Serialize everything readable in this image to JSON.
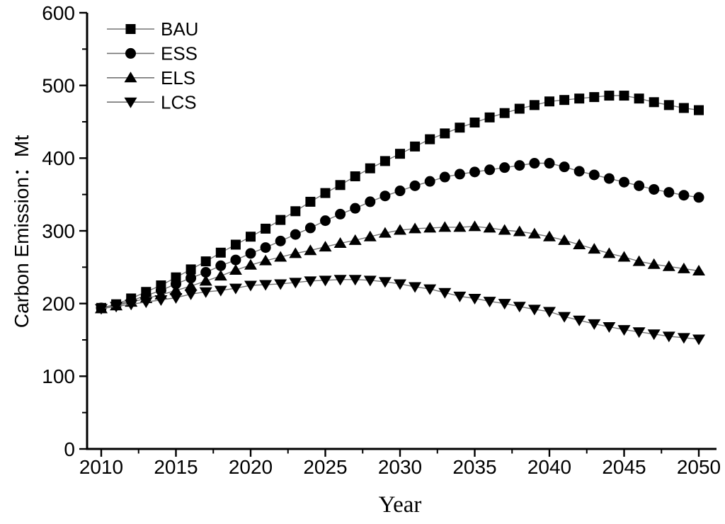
{
  "chart_data": {
    "type": "line",
    "title": "",
    "xlabel": "Year",
    "ylabel": "Carbon Emission：Mt",
    "xlim": [
      2010,
      2050
    ],
    "ylim": [
      0,
      600
    ],
    "x_ticks": [
      2010,
      2015,
      2020,
      2025,
      2030,
      2035,
      2040,
      2045,
      2050
    ],
    "y_ticks": [
      0,
      100,
      200,
      300,
      400,
      500,
      600
    ],
    "grid": "off",
    "legend_position": "top-left",
    "series_color": "#000000",
    "connector_color": "#737373",
    "x": [
      2010,
      2011,
      2012,
      2013,
      2014,
      2015,
      2016,
      2017,
      2018,
      2019,
      2020,
      2021,
      2022,
      2023,
      2024,
      2025,
      2026,
      2027,
      2028,
      2029,
      2030,
      2031,
      2032,
      2033,
      2034,
      2035,
      2036,
      2037,
      2038,
      2039,
      2040,
      2041,
      2042,
      2043,
      2044,
      2045,
      2046,
      2047,
      2048,
      2049,
      2050
    ],
    "series": [
      {
        "name": "BAU",
        "marker": "square",
        "values": [
          194,
          199,
          207,
          216,
          225,
          236,
          247,
          258,
          270,
          281,
          292,
          303,
          315,
          327,
          340,
          352,
          363,
          375,
          386,
          396,
          406,
          416,
          426,
          434,
          442,
          449,
          456,
          462,
          468,
          473,
          478,
          480,
          482,
          484,
          486,
          486,
          482,
          477,
          473,
          469,
          466
        ]
      },
      {
        "name": "ESS",
        "marker": "circle",
        "values": [
          194,
          198,
          204,
          211,
          218,
          227,
          235,
          243,
          252,
          260,
          269,
          277,
          286,
          295,
          304,
          314,
          323,
          331,
          340,
          348,
          355,
          362,
          368,
          374,
          378,
          381,
          384,
          387,
          390,
          393,
          393,
          388,
          382,
          377,
          372,
          367,
          362,
          357,
          353,
          349,
          346
        ]
      },
      {
        "name": "ELS",
        "marker": "triangle-up",
        "values": [
          193,
          197,
          202,
          207,
          212,
          218,
          224,
          231,
          238,
          246,
          253,
          259,
          264,
          269,
          273,
          278,
          283,
          287,
          292,
          297,
          301,
          303,
          304,
          305,
          305,
          306,
          304,
          301,
          299,
          296,
          292,
          287,
          281,
          275,
          269,
          264,
          258,
          254,
          251,
          248,
          245
        ]
      },
      {
        "name": "LCS",
        "marker": "triangle-down",
        "values": [
          193,
          196,
          199,
          202,
          205,
          208,
          213,
          216,
          218,
          221,
          225,
          226,
          227,
          229,
          231,
          232,
          233,
          233,
          232,
          230,
          227,
          223,
          220,
          215,
          210,
          207,
          203,
          200,
          196,
          192,
          189,
          182,
          177,
          172,
          168,
          164,
          161,
          158,
          155,
          153,
          151
        ]
      }
    ]
  }
}
